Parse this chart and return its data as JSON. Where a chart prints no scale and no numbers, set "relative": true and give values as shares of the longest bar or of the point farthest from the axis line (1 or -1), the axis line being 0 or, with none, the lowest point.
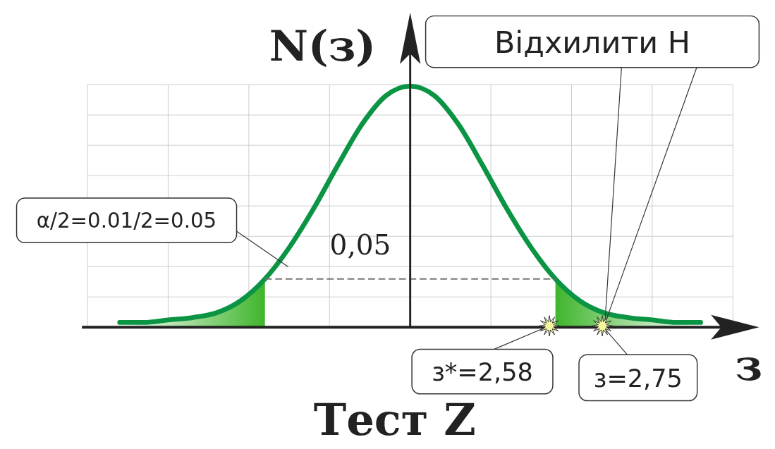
{
  "chart_data": {
    "type": "line",
    "title": "Тест Z",
    "xlabel": "з",
    "ylabel": "N(з)",
    "relative": true,
    "grid": true,
    "categories": [
      null,
      null,
      null,
      null,
      null,
      null,
      null,
      null,
      null,
      null,
      null,
      null,
      null,
      null,
      null,
      null,
      null,
      null,
      null,
      null,
      null,
      null,
      null,
      null,
      null
    ],
    "series": [
      {
        "color": "#0a9443",
        "values": [
          0.02,
          0.02,
          0.03,
          0.04,
          0.06,
          0.11,
          0.2,
          0.33,
          0.49,
          0.67,
          0.84,
          0.96,
          1,
          0.96,
          0.84,
          0.67,
          0.49,
          0.33,
          0.2,
          0.11,
          0.06,
          0.04,
          0.03,
          0.02,
          0.02
        ]
      },
      {
        "type": "area",
        "color": "#3fb52c",
        "values": [
          0.02,
          0.02,
          0.03,
          0.04,
          0.06,
          0.11,
          0.2,
          null,
          null,
          null,
          null,
          null,
          null,
          null,
          null,
          null,
          null,
          null,
          null,
          null,
          null,
          null,
          null,
          null,
          null
        ]
      },
      {
        "type": "area",
        "color": "#3fb52c",
        "values": [
          null,
          null,
          null,
          null,
          null,
          null,
          null,
          null,
          null,
          null,
          null,
          null,
          null,
          null,
          null,
          null,
          null,
          null,
          0.2,
          0.11,
          0.06,
          0.04,
          0.03,
          0.02,
          0.02
        ]
      }
    ],
    "ref_lines": [
      {
        "axis": "y",
        "value": 0.2,
        "color": "#777777",
        "line_style": "dashed"
      }
    ],
    "annotations": [
      "0,05",
      "α/2=0.01/2=0.05",
      "Відхилити Н",
      "з*=2,58",
      "з=2,75"
    ]
  }
}
